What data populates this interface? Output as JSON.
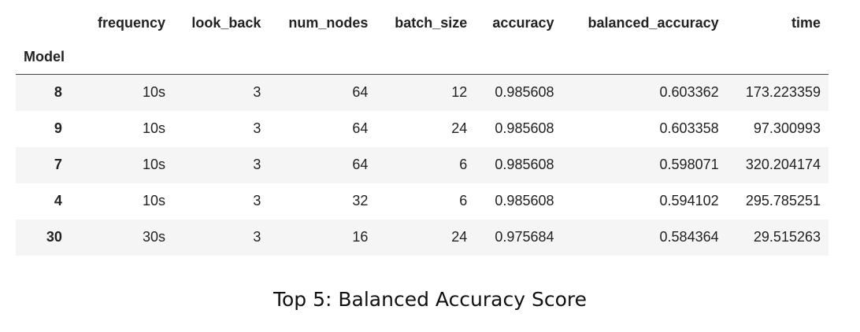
{
  "table": {
    "index_name": "Model",
    "columns": [
      "frequency",
      "look_back",
      "num_nodes",
      "batch_size",
      "accuracy",
      "balanced_accuracy",
      "time"
    ],
    "rows": [
      {
        "index": "8",
        "cells": [
          "10s",
          "3",
          "64",
          "12",
          "0.985608",
          "0.603362",
          "173.223359"
        ]
      },
      {
        "index": "9",
        "cells": [
          "10s",
          "3",
          "64",
          "24",
          "0.985608",
          "0.603358",
          "97.300993"
        ]
      },
      {
        "index": "7",
        "cells": [
          "10s",
          "3",
          "64",
          "6",
          "0.985608",
          "0.598071",
          "320.204174"
        ]
      },
      {
        "index": "4",
        "cells": [
          "10s",
          "3",
          "32",
          "6",
          "0.985608",
          "0.594102",
          "295.785251"
        ]
      },
      {
        "index": "30",
        "cells": [
          "30s",
          "3",
          "16",
          "24",
          "0.975684",
          "0.584364",
          "29.515263"
        ]
      }
    ]
  },
  "caption": "Top 5: Balanced Accuracy Score"
}
